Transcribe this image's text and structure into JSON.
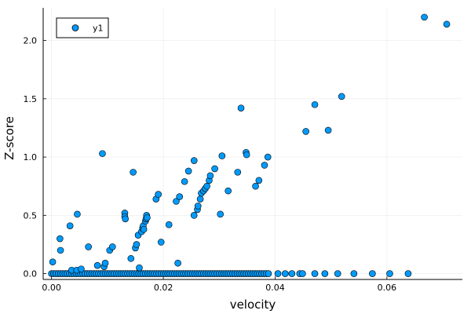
{
  "chart_data": {
    "type": "scatter",
    "xlabel": "velocity",
    "ylabel": "Z-score",
    "xlim": [
      -0.0015,
      0.0735
    ],
    "ylim": [
      -0.05,
      2.28
    ],
    "xticks": [
      0.0,
      0.02,
      0.04,
      0.06
    ],
    "xtick_labels": [
      "0.00",
      "0.02",
      "0.04",
      "0.06"
    ],
    "yticks": [
      0.0,
      0.5,
      1.0,
      1.5,
      2.0
    ],
    "ytick_labels": [
      "0.0",
      "0.5",
      "1.0",
      "1.5",
      "2.0"
    ],
    "grid": true,
    "legend_position": "top-left",
    "marker_color": "#009AFA",
    "series": [
      {
        "name": "y1",
        "points": [
          [
            0.0002,
            0.1
          ],
          [
            0.0015,
            0.3
          ],
          [
            0.0016,
            0.2
          ],
          [
            0.0033,
            0.41
          ],
          [
            0.0046,
            0.51
          ],
          [
            0.0036,
            0.03
          ],
          [
            0.0045,
            0.03
          ],
          [
            0.0053,
            0.04
          ],
          [
            0.0066,
            0.23
          ],
          [
            0.0082,
            0.07
          ],
          [
            0.0091,
            1.03
          ],
          [
            0.0094,
            0.06
          ],
          [
            0.0096,
            0.09
          ],
          [
            0.0104,
            0.2
          ],
          [
            0.0109,
            0.23
          ],
          [
            0.0131,
            0.52
          ],
          [
            0.0131,
            0.49
          ],
          [
            0.0132,
            0.47
          ],
          [
            0.0142,
            0.13
          ],
          [
            0.0146,
            0.87
          ],
          [
            0.015,
            0.22
          ],
          [
            0.0152,
            0.25
          ],
          [
            0.0155,
            0.33
          ],
          [
            0.0157,
            0.05
          ],
          [
            0.0161,
            0.36
          ],
          [
            0.0163,
            0.39
          ],
          [
            0.0164,
            0.41
          ],
          [
            0.0165,
            0.38
          ],
          [
            0.0168,
            0.45
          ],
          [
            0.0169,
            0.47
          ],
          [
            0.017,
            0.5
          ],
          [
            0.0171,
            0.48
          ],
          [
            0.0187,
            0.64
          ],
          [
            0.0191,
            0.68
          ],
          [
            0.0196,
            0.27
          ],
          [
            0.021,
            0.42
          ],
          [
            0.0223,
            0.62
          ],
          [
            0.0226,
            0.09
          ],
          [
            0.0229,
            0.66
          ],
          [
            0.0238,
            0.79
          ],
          [
            0.0245,
            0.88
          ],
          [
            0.0255,
            0.97
          ],
          [
            0.0255,
            0.5
          ],
          [
            0.0261,
            0.55
          ],
          [
            0.0262,
            0.58
          ],
          [
            0.0266,
            0.64
          ],
          [
            0.0268,
            0.69
          ],
          [
            0.0272,
            0.71
          ],
          [
            0.0275,
            0.73
          ],
          [
            0.0278,
            0.75
          ],
          [
            0.0282,
            0.8
          ],
          [
            0.0284,
            0.84
          ],
          [
            0.0292,
            0.9
          ],
          [
            0.0302,
            0.51
          ],
          [
            0.0305,
            1.01
          ],
          [
            0.0316,
            0.71
          ],
          [
            0.0333,
            0.87
          ],
          [
            0.0339,
            1.42
          ],
          [
            0.0348,
            1.04
          ],
          [
            0.0349,
            1.02
          ],
          [
            0.0365,
            0.75
          ],
          [
            0.0371,
            0.8
          ],
          [
            0.0381,
            0.93
          ],
          [
            0.0387,
            1.0
          ],
          [
            0.0455,
            1.22
          ],
          [
            0.0471,
            1.45
          ],
          [
            0.0495,
            1.23
          ],
          [
            0.0519,
            1.52
          ],
          [
            0.0667,
            2.2
          ],
          [
            0.0707,
            2.14
          ]
        ],
        "zero_x": [
          0.0,
          0.0004,
          0.0008,
          0.0012,
          0.0016,
          0.002,
          0.0024,
          0.0028,
          0.0032,
          0.0036,
          0.004,
          0.0044,
          0.0048,
          0.0052,
          0.0056,
          0.006,
          0.0064,
          0.0068,
          0.0072,
          0.0076,
          0.008,
          0.0084,
          0.0088,
          0.0092,
          0.0096,
          0.01,
          0.0104,
          0.0108,
          0.0112,
          0.0116,
          0.012,
          0.0124,
          0.0128,
          0.0132,
          0.0136,
          0.014,
          0.0144,
          0.0148,
          0.0152,
          0.0156,
          0.016,
          0.0164,
          0.0168,
          0.0172,
          0.0176,
          0.018,
          0.0184,
          0.0188,
          0.0192,
          0.0196,
          0.02,
          0.0204,
          0.0208,
          0.0212,
          0.0216,
          0.022,
          0.0224,
          0.0228,
          0.0232,
          0.0236,
          0.024,
          0.0244,
          0.0248,
          0.0252,
          0.0256,
          0.026,
          0.0264,
          0.0268,
          0.0272,
          0.0276,
          0.028,
          0.0284,
          0.0288,
          0.0292,
          0.0296,
          0.03,
          0.0304,
          0.0308,
          0.0312,
          0.0316,
          0.032,
          0.0324,
          0.0328,
          0.0332,
          0.0336,
          0.034,
          0.0344,
          0.0348,
          0.0352,
          0.0356,
          0.036,
          0.0364,
          0.0368,
          0.0372,
          0.0376,
          0.038,
          0.0384,
          0.0388,
          0.0405,
          0.0418,
          0.043,
          0.0444,
          0.0449,
          0.0471,
          0.0489,
          0.0512,
          0.0541,
          0.0574,
          0.0605,
          0.0638
        ]
      }
    ]
  }
}
